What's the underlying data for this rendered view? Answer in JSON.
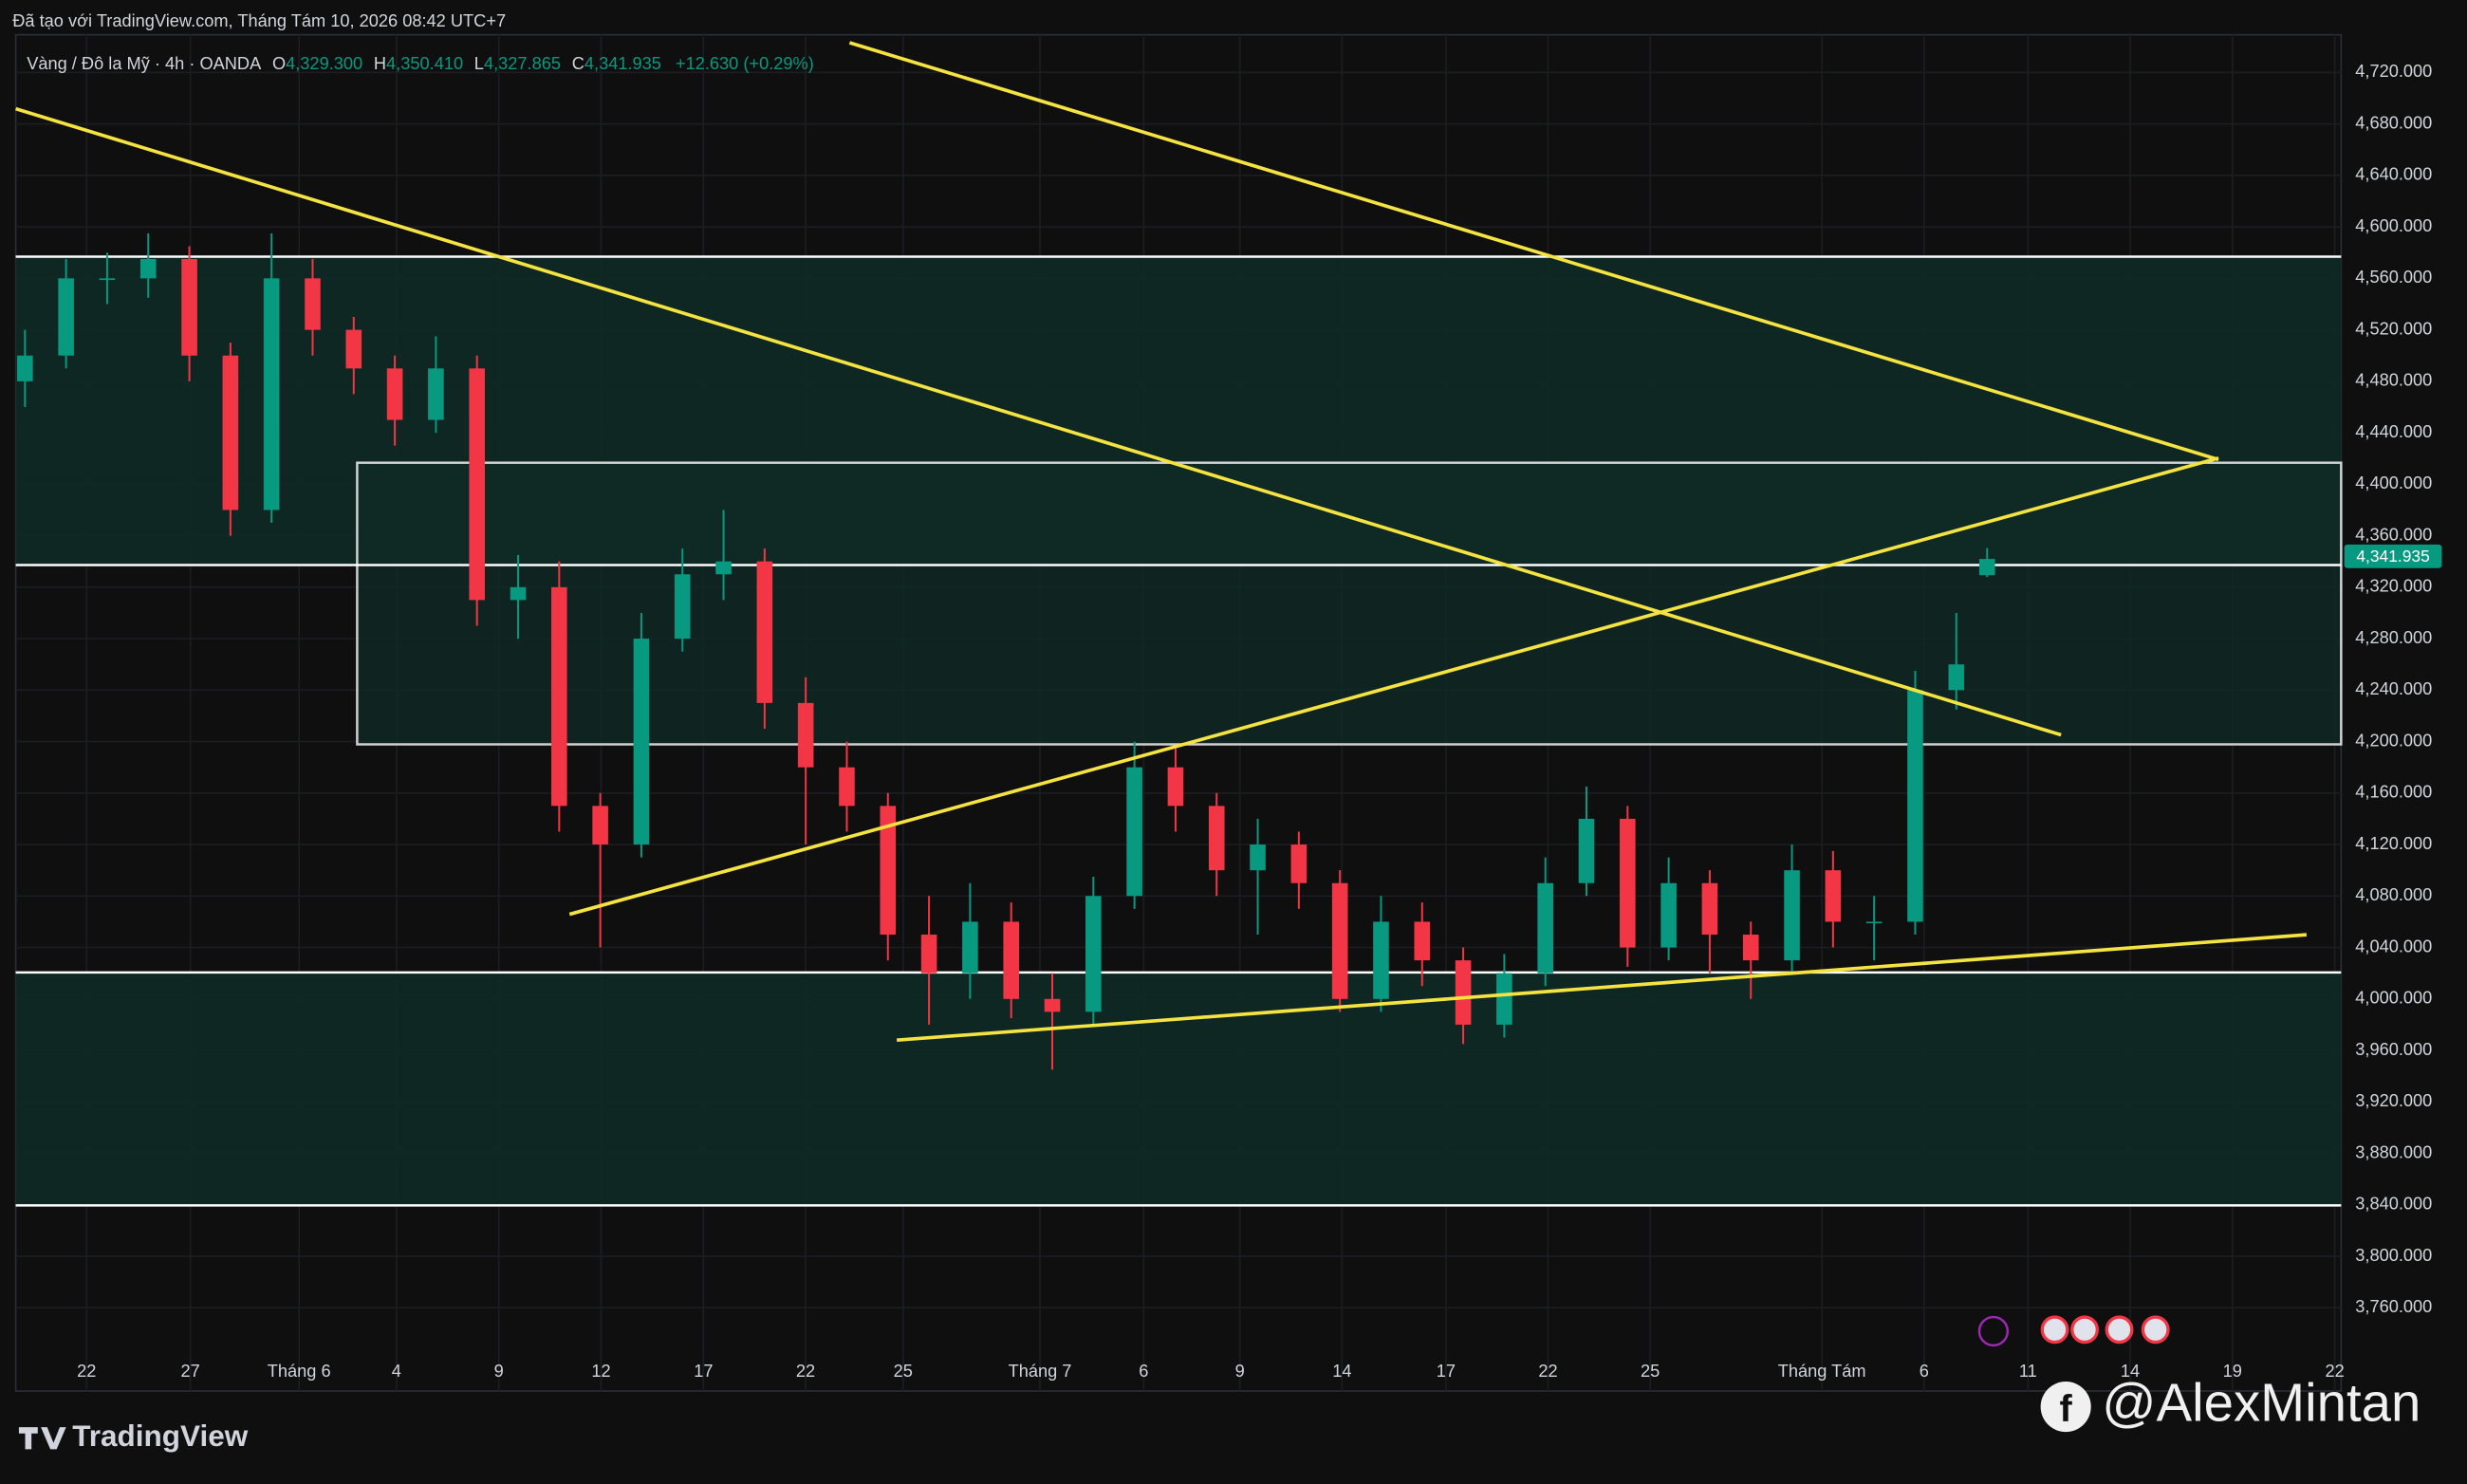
{
  "header": {
    "text": "Đã tạo với TradingView.com, Tháng Tám 10, 2026 08:42 UTC+7"
  },
  "legend": {
    "symbol": "Vàng / Đô la Mỹ · 4h · OANDA",
    "o_label": "O",
    "open": "4,329.300",
    "h_label": "H",
    "high": "4,350.410",
    "l_label": "L",
    "low": "4,327.865",
    "c_label": "C",
    "close": "4,341.935",
    "change": "+12.630 (+0.29%)"
  },
  "last_price_label": "4,341.935",
  "footer": {
    "brand": "TradingView",
    "watermark": "@AlexMintan"
  },
  "chart_data": {
    "type": "candlestick",
    "up_color": "#089981",
    "down_color": "#f23645",
    "grid": true,
    "x": [
      -3,
      -1,
      1,
      3,
      5,
      7,
      9,
      11,
      13,
      15,
      17,
      19,
      21,
      23,
      25,
      27,
      29,
      31,
      33,
      35,
      37,
      39,
      41,
      43,
      45,
      47,
      49,
      51,
      53,
      55,
      57,
      59,
      61,
      63,
      65,
      67,
      69,
      71,
      73,
      75,
      77,
      79,
      81,
      83,
      85,
      87,
      89,
      91,
      92.5
    ],
    "open": [
      4480,
      4500,
      4560,
      4560,
      4575,
      4500,
      4380,
      4560,
      4520,
      4490,
      4450,
      4490,
      4310,
      4320,
      4150,
      4120,
      4280,
      4330,
      4340,
      4230,
      4180,
      4150,
      4050,
      4020,
      4060,
      4000,
      3990,
      4080,
      4180,
      4150,
      4100,
      4120,
      4090,
      4000,
      4060,
      4030,
      3980,
      4020,
      4090,
      4140,
      4040,
      4090,
      4050,
      4030,
      4100,
      4060,
      4060,
      4240,
      4329.3
    ],
    "high": [
      4520,
      4575,
      4580,
      4595,
      4585,
      4510,
      4595,
      4575,
      4530,
      4500,
      4515,
      4500,
      4345,
      4340,
      4160,
      4300,
      4350,
      4380,
      4350,
      4250,
      4200,
      4160,
      4080,
      4090,
      4075,
      4020,
      4095,
      4200,
      4195,
      4160,
      4140,
      4130,
      4100,
      4080,
      4075,
      4040,
      4035,
      4110,
      4165,
      4150,
      4110,
      4100,
      4060,
      4120,
      4115,
      4080,
      4255,
      4300,
      4350.41
    ],
    "low": [
      4460,
      4490,
      4540,
      4545,
      4480,
      4360,
      4370,
      4500,
      4470,
      4430,
      4440,
      4290,
      4280,
      4130,
      4040,
      4110,
      4270,
      4310,
      4210,
      4120,
      4130,
      4030,
      3980,
      4000,
      3985,
      3945,
      3980,
      4070,
      4130,
      4080,
      4050,
      4070,
      3990,
      3990,
      4010,
      3965,
      3970,
      4010,
      4080,
      4025,
      4030,
      4020,
      4000,
      4020,
      4040,
      4030,
      4050,
      4225,
      4327.865
    ],
    "close": [
      4500,
      4560,
      4560,
      4575,
      4500,
      4380,
      4560,
      4520,
      4490,
      4450,
      4490,
      4310,
      4320,
      4150,
      4120,
      4280,
      4330,
      4340,
      4230,
      4180,
      4150,
      4050,
      4020,
      4060,
      4000,
      3990,
      4080,
      4180,
      4150,
      4100,
      4120,
      4090,
      4000,
      4060,
      4030,
      3980,
      4020,
      4090,
      4140,
      4040,
      4090,
      4050,
      4030,
      4100,
      4060,
      4060,
      4240,
      4260,
      4341.935
    ],
    "xlim": [
      -3.45,
      109.73
    ],
    "xticks": [
      {
        "value": 0,
        "label": "22"
      },
      {
        "value": 5.05,
        "label": "27"
      },
      {
        "value": 10.34,
        "label": "Tháng 6"
      },
      {
        "value": 15.08,
        "label": "4"
      },
      {
        "value": 20.06,
        "label": "9"
      },
      {
        "value": 25.04,
        "label": "12"
      },
      {
        "value": 30.02,
        "label": "17"
      },
      {
        "value": 34.99,
        "label": "22"
      },
      {
        "value": 39.74,
        "label": "25"
      },
      {
        "value": 46.4,
        "label": "Tháng 7"
      },
      {
        "value": 51.45,
        "label": "6"
      },
      {
        "value": 56.13,
        "label": "9"
      },
      {
        "value": 61.1,
        "label": "14"
      },
      {
        "value": 66.16,
        "label": "17"
      },
      {
        "value": 71.13,
        "label": "22"
      },
      {
        "value": 76.1,
        "label": "25"
      },
      {
        "value": 84.46,
        "label": "Tháng Tám"
      },
      {
        "value": 89.43,
        "label": "6"
      },
      {
        "value": 94.49,
        "label": "11"
      },
      {
        "value": 99.46,
        "label": "14"
      },
      {
        "value": 104.44,
        "label": "19"
      },
      {
        "value": 109.42,
        "label": "22"
      }
    ],
    "ylim": [
      3695.3,
      4749.3
    ],
    "yticks": [
      {
        "value": 3760,
        "label": "3,760.000"
      },
      {
        "value": 3800,
        "label": "3,800.000"
      },
      {
        "value": 3840,
        "label": "3,840.000"
      },
      {
        "value": 3880,
        "label": "3,880.000"
      },
      {
        "value": 3920,
        "label": "3,920.000"
      },
      {
        "value": 3960,
        "label": "3,960.000"
      },
      {
        "value": 4000,
        "label": "4,000.000"
      },
      {
        "value": 4040,
        "label": "4,040.000"
      },
      {
        "value": 4080,
        "label": "4,080.000"
      },
      {
        "value": 4120,
        "label": "4,120.000"
      },
      {
        "value": 4160,
        "label": "4,160.000"
      },
      {
        "value": 4200,
        "label": "4,200.000"
      },
      {
        "value": 4240,
        "label": "4,240.000"
      },
      {
        "value": 4280,
        "label": "4,280.000"
      },
      {
        "value": 4320,
        "label": "4,320.000"
      },
      {
        "value": 4360,
        "label": "4,360.000"
      },
      {
        "value": 4400,
        "label": "4,400.000"
      },
      {
        "value": 4440,
        "label": "4,440.000"
      },
      {
        "value": 4480,
        "label": "4,480.000"
      },
      {
        "value": 4520,
        "label": "4,520.000"
      },
      {
        "value": 4560,
        "label": "4,560.000"
      },
      {
        "value": 4600,
        "label": "4,600.000"
      },
      {
        "value": 4640,
        "label": "4,640.000"
      },
      {
        "value": 4680,
        "label": "4,680.000"
      },
      {
        "value": 4720,
        "label": "4,720.000"
      }
    ]
  }
}
